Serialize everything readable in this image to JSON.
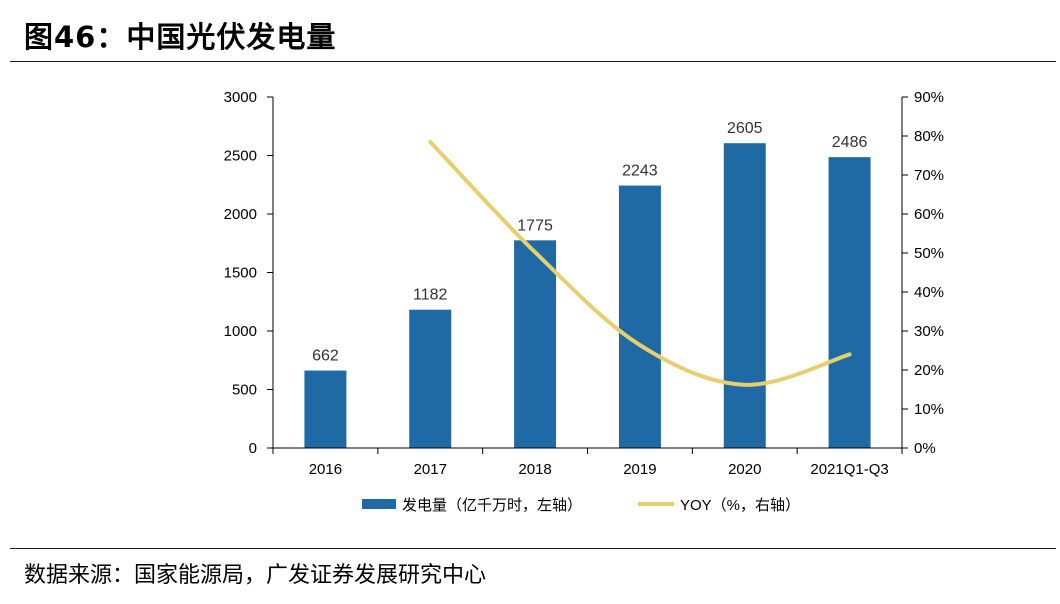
{
  "figure": {
    "title": "图46：中国光伏发电量",
    "source": "数据来源：国家能源局，广发证券发展研究中心"
  },
  "colors": {
    "bar": "#1f6aa5",
    "line": "#e6cf6e",
    "axis": "#000000"
  },
  "chart_data": {
    "type": "bar",
    "title": "",
    "categories": [
      "2016",
      "2017",
      "2018",
      "2019",
      "2020",
      "2021Q1-Q3"
    ],
    "series": [
      {
        "name": "发电量（亿千万时，左轴）",
        "type": "bar",
        "axis": "left",
        "values": [
          662,
          1182,
          1775,
          2243,
          2605,
          2486
        ]
      },
      {
        "name": "YOY（%，右轴）",
        "type": "line",
        "axis": "right",
        "values": [
          null,
          78.5,
          50.2,
          26.4,
          16.2,
          24.0
        ]
      }
    ],
    "data_labels": [
      "662",
      "1182",
      "1775",
      "2243",
      "2605",
      "2486"
    ],
    "y_left": {
      "ylim": [
        0,
        3000
      ],
      "ticks": [
        0,
        500,
        1000,
        1500,
        2000,
        2500,
        3000
      ],
      "tick_labels": [
        "0",
        "500",
        "1000",
        "1500",
        "2000",
        "2500",
        "3000"
      ]
    },
    "y_right": {
      "ylim": [
        0,
        90
      ],
      "ticks": [
        0,
        10,
        20,
        30,
        40,
        50,
        60,
        70,
        80,
        90
      ],
      "tick_labels": [
        "0%",
        "10%",
        "20%",
        "30%",
        "40%",
        "50%",
        "60%",
        "70%",
        "80%",
        "90%"
      ]
    },
    "grid": false,
    "legend_position": "bottom"
  }
}
